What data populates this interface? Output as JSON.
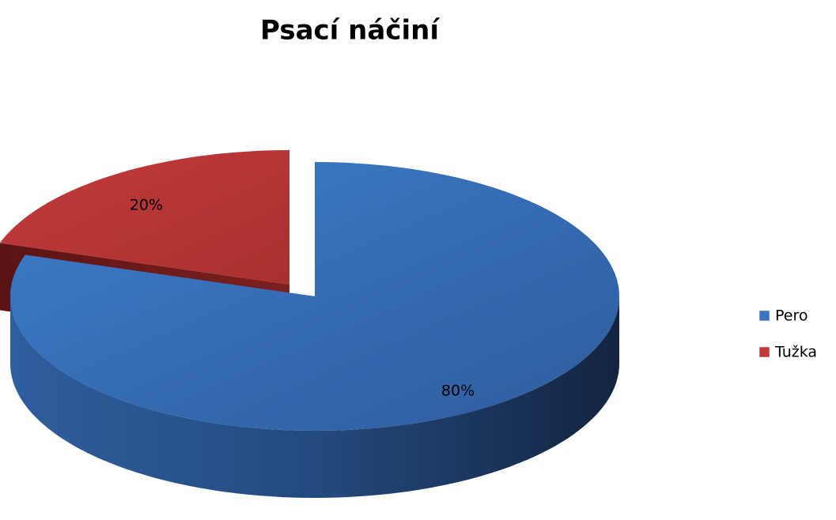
{
  "chart_data": {
    "type": "pie",
    "title": "Psací náčiní",
    "categories": [
      "Pero",
      "Tužka"
    ],
    "values": [
      80,
      20
    ],
    "value_labels": [
      "80%",
      "20%"
    ],
    "colors": [
      "#3a74c2",
      "#c0393b"
    ],
    "legend": "right"
  }
}
